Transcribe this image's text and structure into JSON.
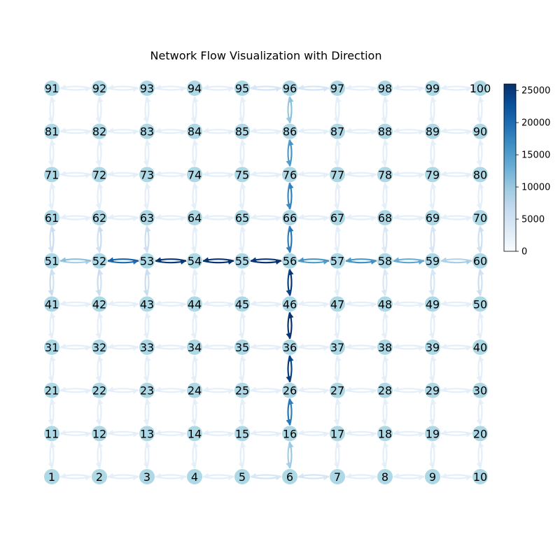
{
  "title": "Network Flow Visualization with Direction",
  "grid": {
    "rows": 10,
    "cols": 10
  },
  "node_color": "#add8e6",
  "colormap": {
    "name": "Blues",
    "min": 0,
    "max": 26000,
    "ticks": [
      "0",
      "5000",
      "10000",
      "15000",
      "20000",
      "25000"
    ]
  },
  "flows": [
    {
      "from": 51,
      "to": 52,
      "value": 9000
    },
    {
      "from": 52,
      "to": 51,
      "value": 11000
    },
    {
      "from": 52,
      "to": 53,
      "value": 20000
    },
    {
      "from": 53,
      "to": 52,
      "value": 21000
    },
    {
      "from": 53,
      "to": 54,
      "value": 25000
    },
    {
      "from": 54,
      "to": 53,
      "value": 25500
    },
    {
      "from": 54,
      "to": 55,
      "value": 26000
    },
    {
      "from": 55,
      "to": 54,
      "value": 25500
    },
    {
      "from": 55,
      "to": 56,
      "value": 26000
    },
    {
      "from": 56,
      "to": 55,
      "value": 25000
    },
    {
      "from": 56,
      "to": 57,
      "value": 15000
    },
    {
      "from": 57,
      "to": 56,
      "value": 16000
    },
    {
      "from": 57,
      "to": 58,
      "value": 16500
    },
    {
      "from": 58,
      "to": 57,
      "value": 15500
    },
    {
      "from": 58,
      "to": 59,
      "value": 14000
    },
    {
      "from": 59,
      "to": 58,
      "value": 13000
    },
    {
      "from": 59,
      "to": 60,
      "value": 9000
    },
    {
      "from": 60,
      "to": 59,
      "value": 8000
    },
    {
      "from": 6,
      "to": 16,
      "value": 10000
    },
    {
      "from": 16,
      "to": 6,
      "value": 9000
    },
    {
      "from": 16,
      "to": 26,
      "value": 18000
    },
    {
      "from": 26,
      "to": 16,
      "value": 19000
    },
    {
      "from": 26,
      "to": 36,
      "value": 24000
    },
    {
      "from": 36,
      "to": 26,
      "value": 25000
    },
    {
      "from": 36,
      "to": 46,
      "value": 26000
    },
    {
      "from": 46,
      "to": 36,
      "value": 25500
    },
    {
      "from": 46,
      "to": 56,
      "value": 25500
    },
    {
      "from": 56,
      "to": 46,
      "value": 24000
    },
    {
      "from": 56,
      "to": 66,
      "value": 19000
    },
    {
      "from": 66,
      "to": 56,
      "value": 18000
    },
    {
      "from": 66,
      "to": 76,
      "value": 18000
    },
    {
      "from": 76,
      "to": 66,
      "value": 17000
    },
    {
      "from": 76,
      "to": 86,
      "value": 16000
    },
    {
      "from": 86,
      "to": 76,
      "value": 15000
    },
    {
      "from": 86,
      "to": 96,
      "value": 11000
    },
    {
      "from": 96,
      "to": 86,
      "value": 10000
    },
    {
      "from": 5,
      "to": 6,
      "value": 4500
    },
    {
      "from": 6,
      "to": 5,
      "value": 4000
    },
    {
      "from": 6,
      "to": 7,
      "value": 4000
    },
    {
      "from": 7,
      "to": 6,
      "value": 4500
    },
    {
      "from": 95,
      "to": 96,
      "value": 4500
    },
    {
      "from": 96,
      "to": 95,
      "value": 4000
    },
    {
      "from": 96,
      "to": 97,
      "value": 4500
    },
    {
      "from": 97,
      "to": 96,
      "value": 4000
    },
    {
      "from": 51,
      "to": 61,
      "value": 6000
    },
    {
      "from": 61,
      "to": 51,
      "value": 5000
    },
    {
      "from": 41,
      "to": 51,
      "value": 5000
    },
    {
      "from": 51,
      "to": 41,
      "value": 6000
    },
    {
      "from": 52,
      "to": 62,
      "value": 6000
    },
    {
      "from": 62,
      "to": 52,
      "value": 5000
    },
    {
      "from": 42,
      "to": 52,
      "value": 5000
    },
    {
      "from": 52,
      "to": 42,
      "value": 6000
    },
    {
      "from": 53,
      "to": 63,
      "value": 6000
    },
    {
      "from": 63,
      "to": 53,
      "value": 5500
    },
    {
      "from": 43,
      "to": 53,
      "value": 5500
    },
    {
      "from": 53,
      "to": 43,
      "value": 6000
    },
    {
      "from": 60,
      "to": 70,
      "value": 5500
    },
    {
      "from": 70,
      "to": 60,
      "value": 5000
    },
    {
      "from": 50,
      "to": 60,
      "value": 5000
    },
    {
      "from": 60,
      "to": 50,
      "value": 5500
    },
    {
      "from": 58,
      "to": 68,
      "value": 4000
    },
    {
      "from": 68,
      "to": 58,
      "value": 3500
    },
    {
      "from": 48,
      "to": 58,
      "value": 3500
    },
    {
      "from": 58,
      "to": 48,
      "value": 4000
    },
    {
      "from": 59,
      "to": 69,
      "value": 4500
    },
    {
      "from": 69,
      "to": 59,
      "value": 4000
    },
    {
      "from": 49,
      "to": 59,
      "value": 4000
    },
    {
      "from": 59,
      "to": 49,
      "value": 4500
    }
  ],
  "default_flow": 2500
}
